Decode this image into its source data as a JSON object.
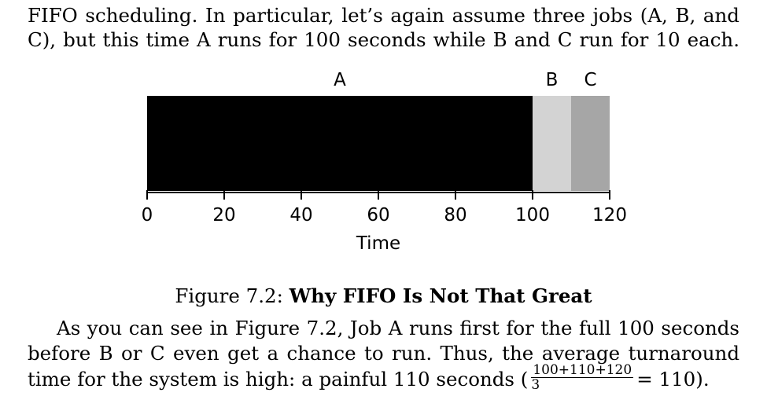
{
  "paragraph1": {
    "line1": "FIFO scheduling. In particular, let’s again assume three jobs (A, B, and",
    "line2": "C), but this time A runs for 100 seconds while B and C run for 10 each."
  },
  "figure": {
    "number": "Figure 7.2:",
    "title": "Why FIFO Is Not That Great"
  },
  "chart_data": {
    "type": "bar",
    "orientation": "horizontal-stacked-timeline",
    "xlabel": "Time",
    "xlim": [
      0,
      120
    ],
    "ticks": [
      0,
      20,
      40,
      60,
      80,
      100,
      120
    ],
    "tick_labels": [
      "0",
      "20",
      "40",
      "60",
      "80",
      "100",
      "120"
    ],
    "grid": false,
    "series": [
      {
        "name": "A",
        "start": 0,
        "end": 100,
        "color": "#000000"
      },
      {
        "name": "B",
        "start": 100,
        "end": 110,
        "color": "#d3d3d3"
      },
      {
        "name": "C",
        "start": 110,
        "end": 120,
        "color": "#a6a6a6"
      }
    ]
  },
  "paragraph2": {
    "line1": "As you can see in Figure 7.2, Job A runs first for the full 100 seconds",
    "line2": "before B or C even get a chance to run. Thus, the average turnaround",
    "line3_prefix": "time for the system is high: a painful 110 seconds (",
    "fraction_numerator": "100+110+120",
    "fraction_denominator": "3",
    "line3_suffix": "= 110)."
  }
}
